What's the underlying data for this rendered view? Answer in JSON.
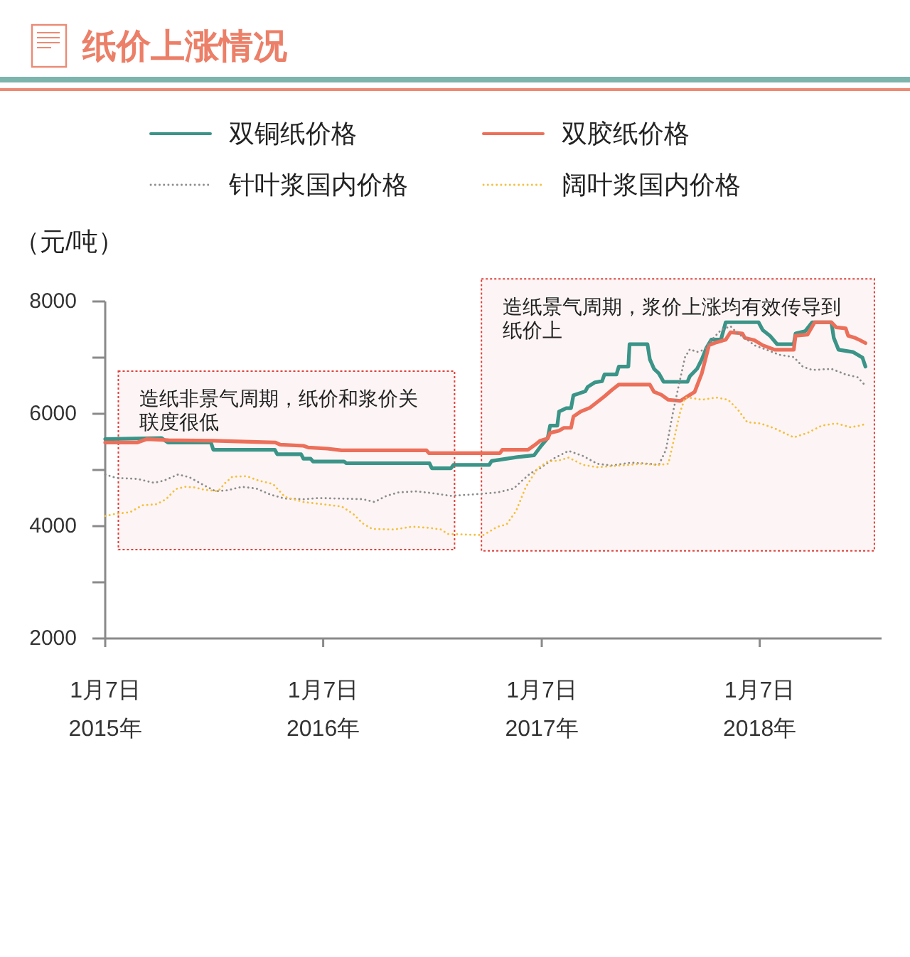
{
  "chart_data": {
    "type": "line",
    "title": "纸价上涨情况",
    "ylabel": "（元/吨）",
    "xlim": [
      "2015-01-07",
      "2018-07-30"
    ],
    "ylim": [
      2000,
      8000
    ],
    "xticks": [
      {
        "value": "2015-01-07",
        "label": "1月7日\n2015年"
      },
      {
        "value": "2016-01-07",
        "label": "1月7日\n2016年"
      },
      {
        "value": "2017-01-07",
        "label": "1月7日\n2017年"
      },
      {
        "value": "2018-01-07",
        "label": "1月7日\n2018年"
      }
    ],
    "yticks": [
      2000,
      {
        "value": 3000,
        "label": null
      },
      4000,
      {
        "value": 5000,
        "label": null
      },
      6000,
      {
        "value": 7000,
        "label": null
      },
      8000
    ],
    "legend": "top",
    "series": [
      {
        "name": "双铜纸价格",
        "color": "#3b9488",
        "line_style": "solid",
        "x": [
          "2015-01-07",
          "2015-04-11",
          "2015-04-22",
          "2015-07-03",
          "2015-07-07",
          "2015-10-18",
          "2015-10-22",
          "2015-12-01",
          "2015-12-05",
          "2015-12-17",
          "2015-12-21",
          "2016-02-11",
          "2016-02-15",
          "2016-07-03",
          "2016-07-07",
          "2016-08-08",
          "2016-08-12",
          "2016-10-11",
          "2016-10-15",
          "2016-11-27",
          "2016-12-25",
          "2017-01-06",
          "2017-01-17",
          "2017-01-21",
          "2017-02-02",
          "2017-02-05",
          "2017-02-17",
          "2017-02-25",
          "2017-03-01",
          "2017-03-21",
          "2017-03-25",
          "2017-04-06",
          "2017-04-18",
          "2017-04-22",
          "2017-05-12",
          "2017-05-16",
          "2017-06-01",
          "2017-06-03",
          "2017-07-03",
          "2017-07-07",
          "2017-07-14",
          "2017-07-22",
          "2017-07-30",
          "2017-09-08",
          "2017-09-12",
          "2017-09-24",
          "2017-10-02",
          "2017-10-10",
          "2017-10-18",
          "2017-11-03",
          "2017-11-11",
          "2018-01-05",
          "2018-01-12",
          "2018-01-24",
          "2018-02-05",
          "2018-03-05",
          "2018-03-08",
          "2018-03-24",
          "2018-04-05",
          "2018-05-07",
          "2018-05-11",
          "2018-05-19",
          "2018-06-12",
          "2018-06-20",
          "2018-06-28",
          "2018-07-03"
        ],
        "values": [
          5550,
          5570,
          5490,
          5490,
          5360,
          5360,
          5280,
          5280,
          5200,
          5200,
          5150,
          5150,
          5120,
          5120,
          5030,
          5030,
          5090,
          5090,
          5160,
          5230,
          5260,
          5430,
          5570,
          5790,
          5790,
          6040,
          6100,
          6100,
          6330,
          6400,
          6480,
          6560,
          6580,
          6700,
          6700,
          6840,
          6840,
          7240,
          7240,
          6970,
          6800,
          6720,
          6570,
          6570,
          6670,
          6800,
          6970,
          7180,
          7320,
          7320,
          7630,
          7630,
          7490,
          7390,
          7240,
          7240,
          7430,
          7470,
          7630,
          7630,
          7350,
          7140,
          7100,
          7050,
          7000,
          6840
        ]
      },
      {
        "name": "双胶纸价格",
        "color": "#ec6f5a",
        "line_style": "solid",
        "x": [
          "2015-01-07",
          "2015-03-02",
          "2015-03-18",
          "2015-04-23",
          "2015-07-07",
          "2015-10-19",
          "2015-10-27",
          "2015-12-05",
          "2015-12-13",
          "2016-01-14",
          "2016-02-07",
          "2016-06-28",
          "2016-07-02",
          "2016-10-29",
          "2016-11-02",
          "2016-12-15",
          "2016-12-27",
          "2017-01-04",
          "2017-01-17",
          "2017-01-21",
          "2017-02-05",
          "2017-02-13",
          "2017-02-25",
          "2017-03-01",
          "2017-03-13",
          "2017-03-29",
          "2017-04-22",
          "2017-05-04",
          "2017-05-16",
          "2017-07-07",
          "2017-07-14",
          "2017-07-26",
          "2017-08-07",
          "2017-08-27",
          "2017-09-08",
          "2017-09-20",
          "2017-10-02",
          "2017-10-14",
          "2017-10-26",
          "2017-11-11",
          "2017-11-19",
          "2017-12-09",
          "2017-12-13",
          "2017-12-29",
          "2018-01-12",
          "2018-02-01",
          "2018-03-05",
          "2018-03-08",
          "2018-03-28",
          "2018-04-09",
          "2018-05-07",
          "2018-05-15",
          "2018-05-31",
          "2018-06-04",
          "2018-06-16",
          "2018-06-24",
          "2018-07-03"
        ],
        "values": [
          5490,
          5490,
          5550,
          5530,
          5520,
          5490,
          5450,
          5430,
          5400,
          5380,
          5350,
          5350,
          5300,
          5300,
          5360,
          5360,
          5450,
          5520,
          5560,
          5660,
          5700,
          5750,
          5750,
          5950,
          6040,
          6110,
          6310,
          6420,
          6520,
          6520,
          6390,
          6340,
          6250,
          6230,
          6310,
          6390,
          6720,
          7220,
          7270,
          7320,
          7450,
          7430,
          7350,
          7310,
          7220,
          7140,
          7140,
          7390,
          7410,
          7630,
          7630,
          7540,
          7520,
          7390,
          7350,
          7310,
          7260
        ]
      },
      {
        "name": "针叶浆国内价格",
        "color": "#8c8c8c",
        "line_style": "dotted",
        "x": [
          "2015-01-07",
          "2015-01-25",
          "2015-03-02",
          "2015-03-30",
          "2015-04-15",
          "2015-05-09",
          "2015-05-28",
          "2015-06-21",
          "2015-07-11",
          "2015-07-31",
          "2015-08-24",
          "2015-09-17",
          "2015-10-11",
          "2015-11-04",
          "2015-12-05",
          "2015-12-29",
          "2016-02-07",
          "2016-03-13",
          "2016-04-02",
          "2016-04-22",
          "2016-05-12",
          "2016-06-12",
          "2016-07-06",
          "2016-08-07",
          "2016-09-07",
          "2016-10-01",
          "2016-10-25",
          "2016-11-21",
          "2016-12-03",
          "2016-12-19",
          "2017-01-04",
          "2017-01-28",
          "2017-02-21",
          "2017-03-17",
          "2017-04-10",
          "2017-05-04",
          "2017-06-05",
          "2017-07-07",
          "2017-07-22",
          "2017-08-03",
          "2017-08-15",
          "2017-08-27",
          "2017-09-04",
          "2017-09-12",
          "2017-09-24",
          "2017-10-06",
          "2017-10-18",
          "2017-11-03",
          "2017-11-19",
          "2017-12-01",
          "2017-12-17",
          "2017-12-29",
          "2018-01-16",
          "2018-02-09",
          "2018-03-05",
          "2018-03-20",
          "2018-04-05",
          "2018-05-07",
          "2018-05-31",
          "2018-06-20",
          "2018-07-03"
        ],
        "values": [
          4920,
          4860,
          4840,
          4770,
          4810,
          4920,
          4870,
          4730,
          4620,
          4640,
          4700,
          4670,
          4560,
          4490,
          4480,
          4500,
          4490,
          4480,
          4430,
          4540,
          4600,
          4620,
          4590,
          4540,
          4560,
          4580,
          4600,
          4670,
          4790,
          4940,
          5030,
          5210,
          5340,
          5250,
          5110,
          5080,
          5130,
          5110,
          5090,
          5360,
          6040,
          6630,
          7010,
          7150,
          7100,
          7140,
          7310,
          7490,
          7560,
          7430,
          7320,
          7220,
          7150,
          7050,
          7010,
          6840,
          6780,
          6800,
          6700,
          6650,
          6500
        ]
      },
      {
        "name": "阔叶浆国内价格",
        "color": "#f4c03e",
        "line_style": "dotted",
        "x": [
          "2015-01-07",
          "2015-01-25",
          "2015-02-18",
          "2015-03-10",
          "2015-04-03",
          "2015-04-19",
          "2015-05-05",
          "2015-05-21",
          "2015-06-05",
          "2015-06-21",
          "2015-07-15",
          "2015-07-27",
          "2015-08-08",
          "2015-09-01",
          "2015-09-21",
          "2015-10-15",
          "2015-11-04",
          "2015-12-05",
          "2016-01-06",
          "2016-02-07",
          "2016-02-26",
          "2016-03-13",
          "2016-03-29",
          "2016-05-04",
          "2016-06-04",
          "2016-07-02",
          "2016-07-22",
          "2016-08-03",
          "2016-10-01",
          "2016-10-25",
          "2016-11-09",
          "2016-11-25",
          "2016-12-11",
          "2016-12-31",
          "2017-01-17",
          "2017-02-05",
          "2017-02-21",
          "2017-03-17",
          "2017-04-10",
          "2017-05-20",
          "2017-06-21",
          "2017-07-22",
          "2017-08-07",
          "2017-08-27",
          "2017-09-04",
          "2017-09-16",
          "2017-10-02",
          "2017-10-26",
          "2017-11-15",
          "2017-12-01",
          "2017-12-17",
          "2018-01-08",
          "2018-02-01",
          "2018-03-05",
          "2018-03-28",
          "2018-04-21",
          "2018-05-15",
          "2018-06-08",
          "2018-06-24",
          "2018-07-03"
        ],
        "values": [
          4180,
          4220,
          4250,
          4370,
          4390,
          4480,
          4660,
          4700,
          4690,
          4650,
          4620,
          4770,
          4880,
          4890,
          4810,
          4750,
          4520,
          4430,
          4390,
          4350,
          4220,
          4050,
          3950,
          3940,
          3990,
          3970,
          3940,
          3860,
          3840,
          3990,
          4030,
          4270,
          4690,
          5030,
          5150,
          5170,
          5220,
          5090,
          5050,
          5080,
          5110,
          5090,
          5110,
          6040,
          6290,
          6280,
          6250,
          6290,
          6250,
          6080,
          5850,
          5830,
          5740,
          5580,
          5660,
          5790,
          5830,
          5760,
          5790,
          5820
        ]
      }
    ],
    "bands": [
      {
        "axis": "x",
        "from": "2015-01-29",
        "to": "2016-08-14",
        "label": "造纸非景气周期，纸价和浆价关联度很低",
        "color": "#e0403a"
      },
      {
        "axis": "x",
        "from": "2016-09-28",
        "to": "2018-07-18",
        "label": "造纸景气周期，浆价上涨均有效传导到纸价上",
        "color": "#e0403a"
      }
    ]
  }
}
